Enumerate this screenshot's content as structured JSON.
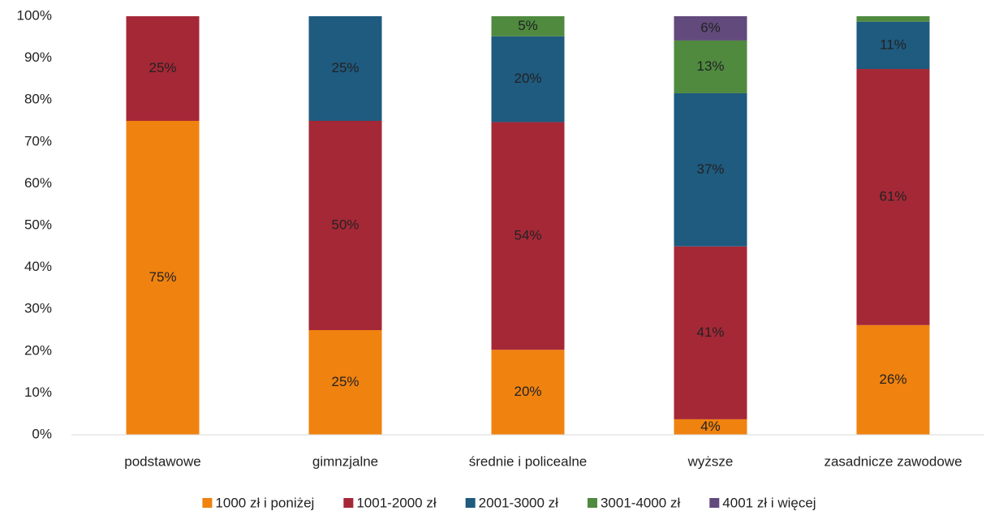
{
  "chart_data": {
    "type": "stacked_bar",
    "categories": [
      "podstawowe",
      "gimnzjalne",
      "średnie i policealne",
      "wyższe",
      "zasadnicze zawodowe"
    ],
    "series": [
      {
        "name": "1000 zł i poniżej",
        "color": "#f0820f",
        "values": [
          75,
          25,
          20.3,
          3.7,
          26.2
        ],
        "value_labels": [
          "75%",
          "25%",
          "20%",
          "4%",
          "26%"
        ]
      },
      {
        "name": "1001-2000 zł",
        "color": "#a52837",
        "values": [
          25,
          50,
          54.4,
          41.3,
          61.2
        ],
        "value_labels": [
          "25%",
          "50%",
          "54%",
          "41%",
          "61%"
        ]
      },
      {
        "name": "2001-3000 zł",
        "color": "#1f5a7f",
        "values": [
          null,
          25,
          20.5,
          36.6,
          11.3
        ],
        "value_labels": [
          null,
          "25%",
          "20%",
          "37%",
          "11%"
        ]
      },
      {
        "name": "3001-4000 zł",
        "color": "#4f8a3f",
        "values": [
          null,
          null,
          4.8,
          12.6,
          1.3
        ],
        "value_labels": [
          null,
          null,
          "5%",
          "13%",
          null
        ]
      },
      {
        "name": "4001 zł i więcej",
        "color": "#624a7c",
        "values": [
          null,
          null,
          null,
          5.8,
          null
        ],
        "value_labels": [
          null,
          null,
          null,
          "6%",
          null
        ]
      }
    ],
    "ylim": [
      0,
      100
    ],
    "yticks": [
      {
        "value": 0,
        "label": "0%"
      },
      {
        "value": 10,
        "label": "10%"
      },
      {
        "value": 20,
        "label": "20%"
      },
      {
        "value": 30,
        "label": "30%"
      },
      {
        "value": 40,
        "label": "40%"
      },
      {
        "value": 50,
        "label": "50%"
      },
      {
        "value": 60,
        "label": "60%"
      },
      {
        "value": 70,
        "label": "70%"
      },
      {
        "value": 80,
        "label": "80%"
      },
      {
        "value": 90,
        "label": "90%"
      },
      {
        "value": 100,
        "label": "100%"
      }
    ],
    "grid": false,
    "legend": "bottom"
  }
}
